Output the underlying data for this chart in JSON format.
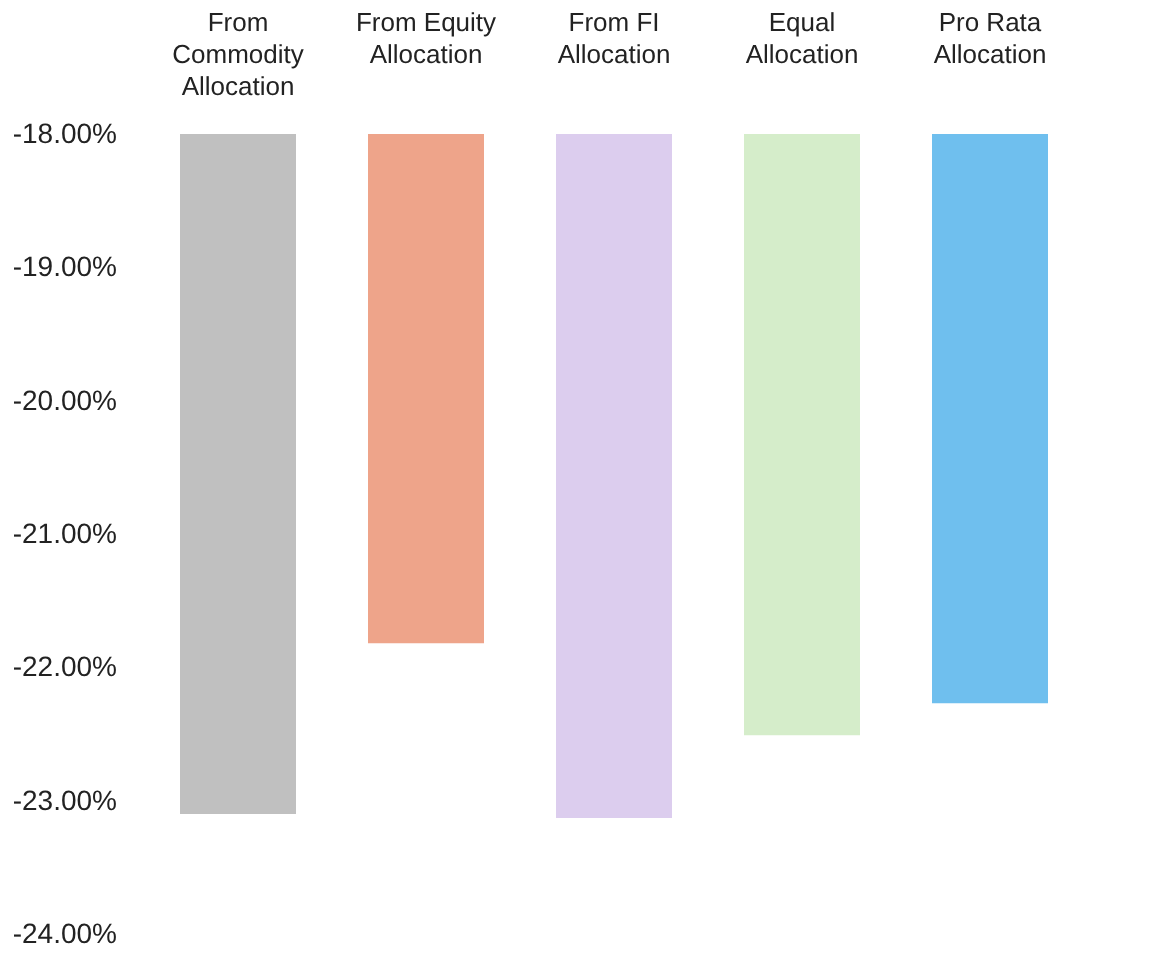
{
  "chart_data": {
    "type": "bar",
    "categories": [
      "From\nCommodity\nAllocation",
      "From Equity\nAllocation",
      "From FI\nAllocation",
      "Equal\nAllocation",
      "Pro Rata\nAllocation"
    ],
    "values": [
      -23.1,
      -21.82,
      -23.13,
      -22.51,
      -22.27
    ],
    "colors": [
      "#c0c0c0",
      "#eea48a",
      "#dccdee",
      "#d5edca",
      "#6fbfee"
    ],
    "ylim": [
      -24,
      -18
    ],
    "yticks": [
      {
        "value": -18,
        "label": "-18.00%"
      },
      {
        "value": -19,
        "label": "-19.00%"
      },
      {
        "value": -20,
        "label": "-20.00%"
      },
      {
        "value": -21,
        "label": "-21.00%"
      },
      {
        "value": -22,
        "label": "-22.00%"
      },
      {
        "value": -23,
        "label": "-23.00%"
      },
      {
        "value": -24,
        "label": "-24.00%"
      }
    ],
    "grid": false
  }
}
